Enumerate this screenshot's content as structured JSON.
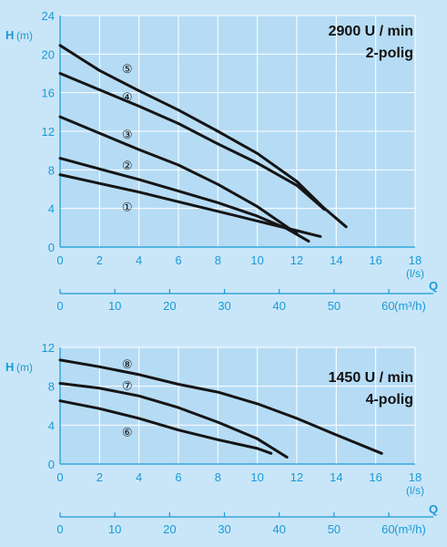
{
  "colors": {
    "background": "#c9e6f8",
    "panel": "#b6dcf5",
    "grid": "#ffffff",
    "axis_text": "#1a9ad6",
    "curve": "#151515"
  },
  "chart_data": [
    {
      "type": "line",
      "title": "2900 U / min",
      "subtitle": "2-polig",
      "ylabel_symbol": "H",
      "ylabel_unit": "(m)",
      "xlabel_unit": "(l/s)",
      "q_axis_symbol": "Q",
      "q_axis_unit": "(m³/h)",
      "xlim": [
        0,
        18
      ],
      "ylim": [
        0,
        24
      ],
      "x_ticks": [
        "0",
        "2",
        "4",
        "6",
        "8",
        "10",
        "12",
        "14",
        "16",
        "18"
      ],
      "y_ticks": [
        "0",
        "4",
        "8",
        "12",
        "16",
        "20",
        "24"
      ],
      "q_ticks": [
        "0",
        "10",
        "20",
        "30",
        "40",
        "50",
        "60"
      ],
      "grid": true,
      "series": [
        {
          "name": "①",
          "label_at": [
            3.4,
            4.3
          ],
          "points": [
            [
              0,
              7.5
            ],
            [
              2,
              6.6
            ],
            [
              4,
              5.7
            ],
            [
              6,
              4.7
            ],
            [
              8,
              3.7
            ],
            [
              10,
              2.7
            ],
            [
              12,
              1.7
            ],
            [
              13.2,
              1.1
            ]
          ]
        },
        {
          "name": "②",
          "label_at": [
            3.4,
            8.6
          ],
          "points": [
            [
              0,
              9.2
            ],
            [
              2,
              8.1
            ],
            [
              4,
              7.0
            ],
            [
              6,
              5.8
            ],
            [
              8,
              4.6
            ],
            [
              10,
              3.2
            ],
            [
              11.5,
              1.9
            ],
            [
              12.6,
              0.6
            ]
          ]
        },
        {
          "name": "③",
          "label_at": [
            3.4,
            11.8
          ],
          "points": [
            [
              0,
              13.5
            ],
            [
              2,
              11.8
            ],
            [
              4,
              10.1
            ],
            [
              6,
              8.5
            ],
            [
              8,
              6.5
            ],
            [
              10,
              4.2
            ],
            [
              11,
              2.8
            ],
            [
              12,
              1.4
            ]
          ]
        },
        {
          "name": "④",
          "label_at": [
            3.4,
            15.7
          ],
          "points": [
            [
              0,
              18.0
            ],
            [
              2,
              16.3
            ],
            [
              4,
              14.6
            ],
            [
              6,
              12.8
            ],
            [
              8,
              10.7
            ],
            [
              10,
              8.7
            ],
            [
              12,
              6.4
            ],
            [
              13.4,
              3.9
            ]
          ]
        },
        {
          "name": "⑤",
          "label_at": [
            3.4,
            18.6
          ],
          "points": [
            [
              0,
              20.9
            ],
            [
              1,
              19.6
            ],
            [
              2,
              18.3
            ],
            [
              4,
              16.2
            ],
            [
              6,
              14.2
            ],
            [
              8,
              12.0
            ],
            [
              10,
              9.7
            ],
            [
              12,
              6.8
            ],
            [
              13.3,
              4.2
            ],
            [
              14.5,
              2.1
            ]
          ]
        }
      ]
    },
    {
      "type": "line",
      "title": "1450 U / min",
      "subtitle": "4-polig",
      "ylabel_symbol": "H",
      "ylabel_unit": "(m)",
      "xlabel_unit": "(l/s)",
      "q_axis_symbol": "Q",
      "q_axis_unit": "(m³/h)",
      "xlim": [
        0,
        18
      ],
      "ylim": [
        0,
        12
      ],
      "x_ticks": [
        "0",
        "2",
        "4",
        "6",
        "8",
        "10",
        "12",
        "14",
        "16",
        "18"
      ],
      "y_ticks": [
        "0",
        "4",
        "8",
        "12"
      ],
      "q_ticks": [
        "0",
        "10",
        "20",
        "30",
        "40",
        "50",
        "60"
      ],
      "grid": true,
      "series": [
        {
          "name": "⑥",
          "label_at": [
            3.4,
            3.4
          ],
          "points": [
            [
              0,
              6.5
            ],
            [
              2,
              5.7
            ],
            [
              4,
              4.7
            ],
            [
              6,
              3.5
            ],
            [
              8,
              2.5
            ],
            [
              10,
              1.6
            ],
            [
              10.7,
              1.1
            ]
          ]
        },
        {
          "name": "⑦",
          "label_at": [
            3.4,
            8.2
          ],
          "points": [
            [
              0,
              8.3
            ],
            [
              2,
              7.8
            ],
            [
              4,
              7.0
            ],
            [
              6,
              5.8
            ],
            [
              8,
              4.3
            ],
            [
              10,
              2.6
            ],
            [
              11.5,
              0.7
            ]
          ]
        },
        {
          "name": "⑧",
          "label_at": [
            3.4,
            10.4
          ],
          "points": [
            [
              0,
              10.7
            ],
            [
              2,
              10.0
            ],
            [
              4,
              9.2
            ],
            [
              6,
              8.2
            ],
            [
              8,
              7.4
            ],
            [
              10,
              6.2
            ],
            [
              12,
              4.7
            ],
            [
              14,
              3.0
            ],
            [
              16.3,
              1.1
            ]
          ]
        }
      ]
    }
  ]
}
